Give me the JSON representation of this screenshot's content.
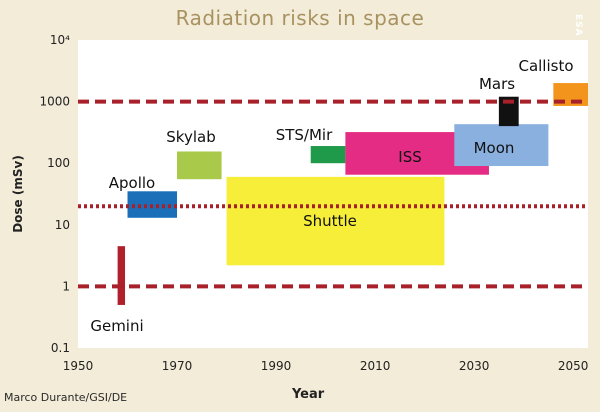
{
  "title": "Radiation risks in space",
  "credit": "Marco Durante/GSI/DE",
  "watermark": "ESA",
  "colors": {
    "background": "#f3ecd8",
    "plot_background": "#ffffff",
    "title": "#a89260",
    "dashed_line": "#a8202a"
  },
  "chart_data": {
    "type": "range-bar",
    "xlabel": "Year",
    "ylabel": "Dose (mSv)",
    "x_ticks": [
      1950,
      1970,
      1990,
      2010,
      2030,
      2050
    ],
    "y_scale": "log",
    "y_ticks": [
      {
        "value": 0.1,
        "label": "0.1"
      },
      {
        "value": 1,
        "label": "1"
      },
      {
        "value": 10,
        "label": "10"
      },
      {
        "value": 100,
        "label": "100"
      },
      {
        "value": 1000,
        "label": "1000"
      },
      {
        "value": 10000,
        "label": "10⁴"
      }
    ],
    "xlim": [
      1950,
      2053
    ],
    "ylim": [
      0.1,
      10000
    ],
    "grid": false,
    "reference_lines": [
      {
        "y": 1000,
        "style": "dashed"
      },
      {
        "y": 20,
        "style": "dotted"
      },
      {
        "y": 1,
        "style": "dashed"
      }
    ],
    "missions": [
      {
        "label": "Gemini",
        "x0": 1958,
        "x1": 1959.5,
        "y0": 0.5,
        "y1": 4.5,
        "color": "#b0202c"
      },
      {
        "label": "Apollo",
        "x0": 1960,
        "x1": 1970,
        "y0": 13,
        "y1": 35,
        "color": "#1a6fb8"
      },
      {
        "label": "Skylab",
        "x0": 1970,
        "x1": 1979,
        "y0": 55,
        "y1": 155,
        "color": "#a8c94a"
      },
      {
        "label": "Shuttle",
        "x0": 1980,
        "x1": 2024,
        "y0": 2.2,
        "y1": 60,
        "color": "#f7ee3a"
      },
      {
        "label": "STS/Mir",
        "x0": 1997,
        "x1": 2004,
        "y0": 100,
        "y1": 190,
        "color": "#1f9a4a"
      },
      {
        "label": "ISS",
        "x0": 2004,
        "x1": 2033,
        "y0": 65,
        "y1": 320,
        "color": "#e42c85"
      },
      {
        "label": "Moon",
        "x0": 2026,
        "x1": 2045,
        "y0": 90,
        "y1": 430,
        "color": "#8ab0e0"
      },
      {
        "label": "Mars",
        "x0": 2035,
        "x1": 2039,
        "y0": 400,
        "y1": 1200,
        "color": "#111111"
      },
      {
        "label": "Callisto",
        "x0": 2046,
        "x1": 2053,
        "y0": 850,
        "y1": 2000,
        "color": "#f3941c"
      }
    ]
  }
}
